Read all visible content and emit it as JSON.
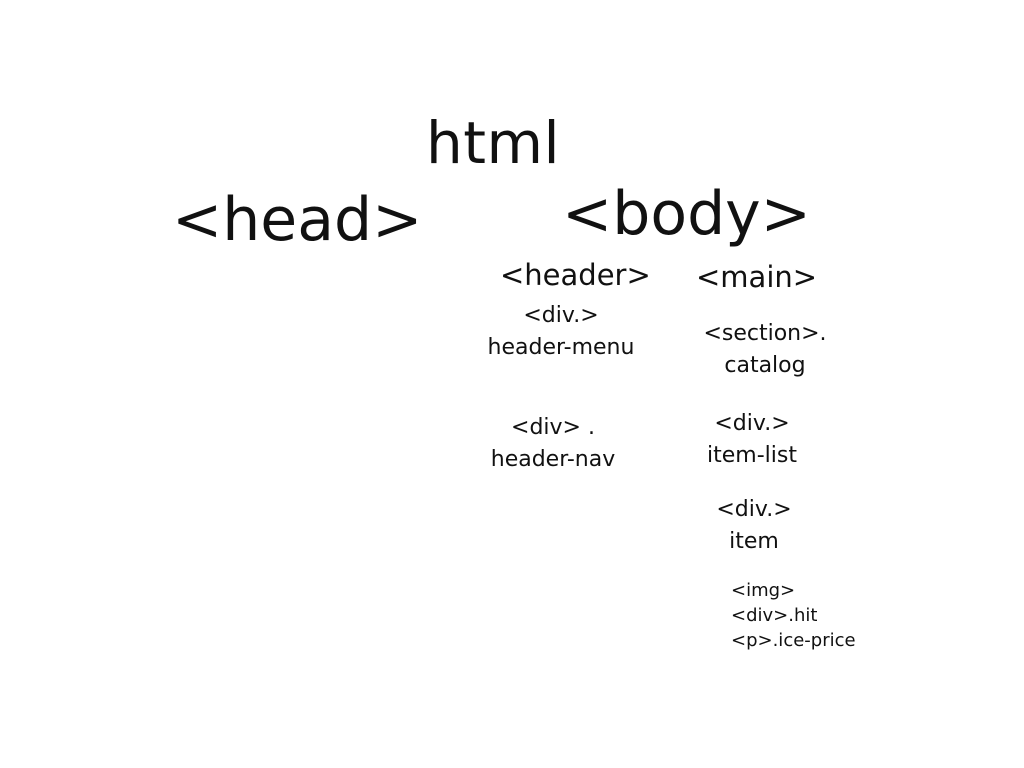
{
  "diagram": {
    "root": "html",
    "head": "<head>",
    "body": "<body>",
    "header": {
      "tag": "<header>",
      "menu": {
        "tag": "<div.>",
        "cls": "header-menu"
      },
      "nav": {
        "tag": "<div> .",
        "cls": "header-nav"
      }
    },
    "main": {
      "tag": "<main>",
      "catalog": {
        "tag": "<section>.",
        "cls": "catalog"
      },
      "item_list": {
        "tag": "<div.>",
        "cls": "item-list"
      },
      "item": {
        "tag": "<div.>",
        "cls": "item"
      },
      "leaves": [
        "<img>",
        "<div>.hit",
        "<p>.ice-price"
      ]
    }
  }
}
